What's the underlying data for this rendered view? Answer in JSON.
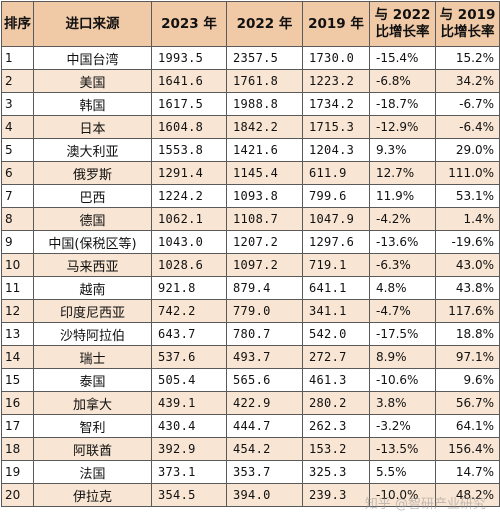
{
  "table": {
    "headers": [
      "排序",
      "进口来源",
      "2023 年",
      "2022 年",
      "2019 年",
      "与 2022 比增长率",
      "与 2019 比增长率"
    ],
    "rows": [
      [
        "1",
        "中国台湾",
        "1993.5",
        "2357.5",
        "1730.0",
        "-15.4%",
        "15.2%"
      ],
      [
        "2",
        "美国",
        "1641.6",
        "1761.8",
        "1223.2",
        "-6.8%",
        "34.2%"
      ],
      [
        "3",
        "韩国",
        "1617.5",
        "1988.8",
        "1734.2",
        "-18.7%",
        "-6.7%"
      ],
      [
        "4",
        "日本",
        "1604.8",
        "1842.2",
        "1715.3",
        "-12.9%",
        "-6.4%"
      ],
      [
        "5",
        "澳大利亚",
        "1553.8",
        "1421.6",
        "1204.3",
        "9.3%",
        "29.0%"
      ],
      [
        "6",
        "俄罗斯",
        "1291.4",
        "1145.4",
        "611.9",
        "12.7%",
        "111.0%"
      ],
      [
        "7",
        "巴西",
        "1224.2",
        "1093.8",
        "799.6",
        "11.9%",
        "53.1%"
      ],
      [
        "8",
        "德国",
        "1062.1",
        "1108.7",
        "1047.9",
        "-4.2%",
        "1.4%"
      ],
      [
        "9",
        "中国(保税区等)",
        "1043.0",
        "1207.2",
        "1297.6",
        "-13.6%",
        "-19.6%"
      ],
      [
        "10",
        "马来西亚",
        "1028.6",
        "1097.2",
        "719.1",
        "-6.3%",
        "43.0%"
      ],
      [
        "11",
        "越南",
        "921.8",
        "879.4",
        "641.1",
        "4.8%",
        "43.8%"
      ],
      [
        "12",
        "印度尼西亚",
        "742.2",
        "779.0",
        "341.1",
        "-4.7%",
        "117.6%"
      ],
      [
        "13",
        "沙特阿拉伯",
        "643.7",
        "780.7",
        "542.0",
        "-17.5%",
        "18.8%"
      ],
      [
        "14",
        "瑞士",
        "537.6",
        "493.7",
        "272.7",
        "8.9%",
        "97.1%"
      ],
      [
        "15",
        "泰国",
        "505.4",
        "565.6",
        "461.3",
        "-10.6%",
        "9.6%"
      ],
      [
        "16",
        "加拿大",
        "439.1",
        "422.9",
        "280.2",
        "3.8%",
        "56.7%"
      ],
      [
        "17",
        "智利",
        "430.4",
        "444.7",
        "262.3",
        "-3.2%",
        "64.1%"
      ],
      [
        "18",
        "阿联酋",
        "392.9",
        "454.2",
        "153.2",
        "-13.5%",
        "156.4%"
      ],
      [
        "19",
        "法国",
        "373.1",
        "353.7",
        "325.3",
        "5.5%",
        "14.7%"
      ],
      [
        "20",
        "伊拉克",
        "354.5",
        "394.0",
        "239.3",
        "-10.0%",
        "48.2%"
      ]
    ]
  },
  "watermark": "知乎 @智研产业研究"
}
